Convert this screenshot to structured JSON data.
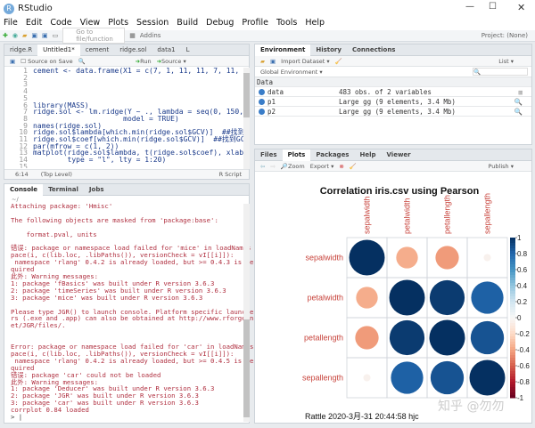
{
  "window": {
    "title": "RStudio",
    "project": "Project: (None)"
  },
  "menu": [
    "File",
    "Edit",
    "Code",
    "View",
    "Plots",
    "Session",
    "Build",
    "Debug",
    "Profile",
    "Tools",
    "Help"
  ],
  "toolbar": {
    "goto_placeholder": "Go to file/function",
    "addins": "Addins"
  },
  "editor": {
    "tabs": [
      "ridge.R",
      "Untitled1*",
      "cement",
      "ridge.sol",
      "data1",
      "L"
    ],
    "source_on_save": "Source on Save",
    "run": "Run",
    "source": "Source",
    "lines": [
      "cement <- data.frame(X1 = c(7, 1, 11, 11, 7, 11, 3, 1, 2",
      "",
      "",
      "",
      "",
      "library(MASS)",
      "ridge.sol <- lm.ridge(Y ~ ., lambda = seq(0, 150, length",
      "                     model = TRUE)",
      "names(ridge.sol)",
      "ridge.sol$lambda[which.min(ridge.sol$GCV)]  ##找到GCV最小",
      "ridge.sol$coef[which.min(ridge.sol$GCV)]  ##找到GCV最小时",
      "par(mfrow = c(1, 2))",
      "matplot(ridge.sol$lambda, t(ridge.sol$coef), xlab = expr",
      "        type = \"l\", lty = 1:20)",
      ""
    ],
    "status_pos": "6:14",
    "status_scope": "(Top Level)",
    "status_type": "R Script"
  },
  "console": {
    "tabs": [
      "Console",
      "Terminal",
      "Jobs"
    ],
    "path": "~/",
    "lines": [
      "Attaching package: 'Hmisc'",
      "",
      "The following objects are masked from 'package:base':",
      "",
      "    format.pval, units",
      "",
      "错误: package or namespace load failed for 'mice' in loadNames",
      "pace(i, c(lib.loc, .libPaths()), versionCheck = vI[[i]]):",
      " namespace 'rlang' 0.4.2 is already loaded, but >= 0.4.3 is re",
      "quired",
      "此外: Warning messages:",
      "1: package 'fBasics' was built under R version 3.6.3",
      "2: package 'timeSeries' was built under R version 3.6.3",
      "3: package 'mice' was built under R version 3.6.3",
      "",
      "Please type JGR() to launch console. Platform specific launche",
      "rs (.exe and .app) can also be obtained at http://www.rforge.n",
      "et/JGR/files/.",
      "",
      "",
      "Error: package or namespace load failed for 'car' in loadNames",
      "pace(i, c(lib.loc, .libPaths()), versionCheck = vI[[i]]):",
      " namespace 'rlang' 0.4.2 is already loaded, but >= 0.4.5 is re",
      "quired",
      "错误: package 'car' could not be loaded",
      "此外: Warning messages:",
      "1: package 'Deducer' was built under R version 3.6.3",
      "2: package 'JGR' was built under R version 3.6.3",
      "3: package 'car' was built under R version 3.6.3",
      "corrplot 0.84 loaded"
    ],
    "prompt": ">"
  },
  "environment": {
    "tabs": [
      "Environment",
      "History",
      "Connections"
    ],
    "import": "Import Dataset",
    "list": "List",
    "scope": "Global Environment",
    "section": "Data",
    "rows": [
      {
        "name": "data",
        "value": "483 obs. of 2 variables"
      },
      {
        "name": "p1",
        "value": "Large gg (9 elements, 3.4 Mb)"
      },
      {
        "name": "p2",
        "value": "Large gg (9 elements, 3.4 Mb)"
      }
    ]
  },
  "plots": {
    "tabs": [
      "Files",
      "Plots",
      "Packages",
      "Help",
      "Viewer"
    ],
    "zoom": "Zoom",
    "export": "Export",
    "publish": "Publish"
  },
  "chart_data": {
    "type": "heatmap",
    "title": "Correlation iris.csv using Pearson",
    "footer": "Rattle 2020-3月-31 20:44:58 hjc",
    "variables": [
      "sepalwidth",
      "petalwidth",
      "petallength",
      "sepallength"
    ],
    "matrix": [
      [
        1,
        -0.37,
        -0.43,
        -0.04
      ],
      [
        -0.37,
        1,
        0.96,
        0.82
      ],
      [
        -0.43,
        0.96,
        1,
        0.87
      ],
      [
        -0.04,
        0.82,
        0.87,
        1
      ]
    ],
    "colorbar_ticks": [
      "1",
      "0.8",
      "0.6",
      "0.4",
      "0.2",
      "0",
      "-0.2",
      "-0.4",
      "-0.6",
      "-0.8",
      "-1"
    ],
    "range": [
      -1,
      1
    ],
    "colors": [
      "#67001f",
      "#b2182b",
      "#d6604d",
      "#f4a582",
      "#fddbc7",
      "#f7f7f7",
      "#d1e5f0",
      "#92c5de",
      "#4393c3",
      "#2166ac",
      "#053061"
    ]
  },
  "watermark": "知乎 @勿勿"
}
